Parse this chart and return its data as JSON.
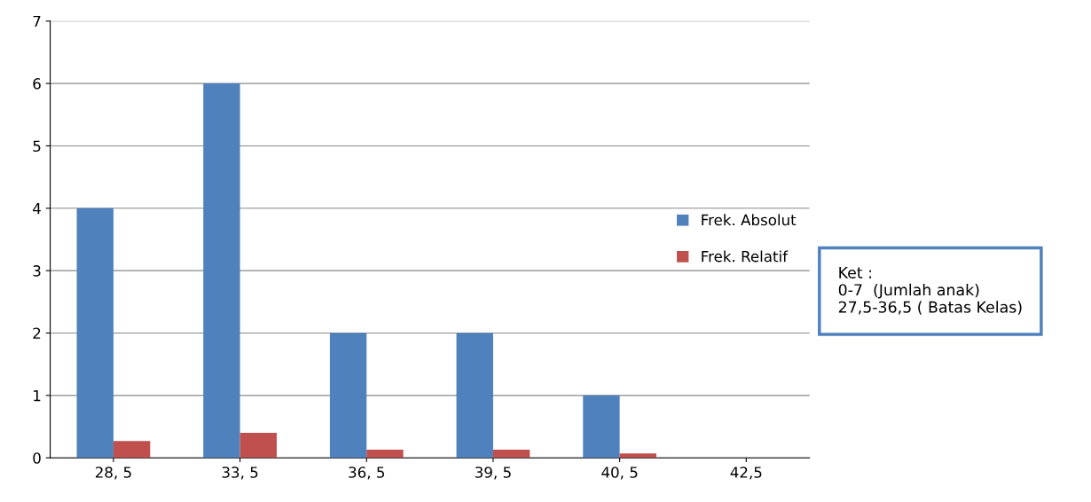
{
  "chart_data": {
    "type": "bar",
    "categories": [
      "28, 5",
      "33, 5",
      "36, 5",
      "39, 5",
      "40, 5",
      "42,5"
    ],
    "series": [
      {
        "name": "Frek. Absolut",
        "color": "#4f81bd",
        "values": [
          4,
          6,
          2,
          2,
          1,
          null
        ]
      },
      {
        "name": "Frek. Relatif",
        "color": "#c0504d",
        "values": [
          0.27,
          0.4,
          0.13,
          0.13,
          0.07,
          null
        ]
      }
    ],
    "ylim": [
      0,
      7
    ],
    "yticks": [
      0,
      1,
      2,
      3,
      4,
      5,
      6,
      7
    ],
    "grid": "y",
    "legend": "right",
    "annotations": [
      "Ket :\n0-7  (Jumlah anak)\n27,5-36,5 ( Batas Kelas)"
    ]
  }
}
